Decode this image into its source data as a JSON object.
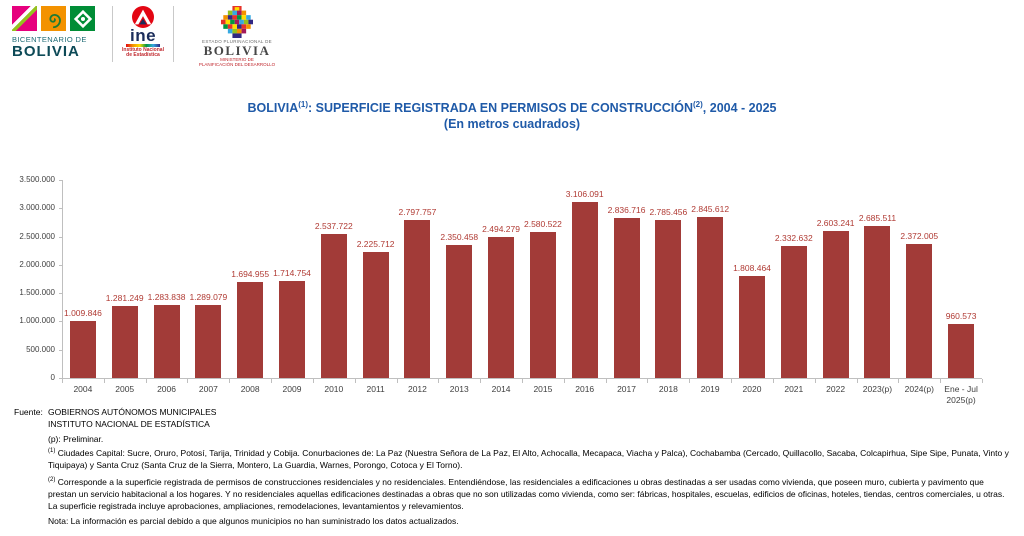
{
  "header": {
    "bicentenario": {
      "line1": "BICENTENARIO DE",
      "line2": "BOLIVIA"
    },
    "ine": {
      "name": "ine",
      "subtitle_line1": "Instituto Nacional",
      "subtitle_line2": "de Estadística"
    },
    "ministerio": {
      "small_top": "ESTADO PLURINACIONAL DE",
      "name": "BOLIVIA",
      "small_bottom_line1": "MINISTERIO DE",
      "small_bottom_line2": "PLANIFICACIÓN DEL DESARROLLO"
    }
  },
  "title": {
    "prefix": "BOLIVIA",
    "sup1": "(1)",
    "mid": ": SUPERFICIE REGISTRADA EN PERMISOS DE CONSTRUCCIÓN",
    "sup2": "(2)",
    "suffix": ", 2004 - 2025",
    "line2": "(En metros cuadrados)"
  },
  "chart_data": {
    "type": "bar",
    "categories": [
      "2004",
      "2005",
      "2006",
      "2007",
      "2008",
      "2009",
      "2010",
      "2011",
      "2012",
      "2013",
      "2014",
      "2015",
      "2016",
      "2017",
      "2018",
      "2019",
      "2020",
      "2021",
      "2022",
      "2023(p)",
      "2024(p)",
      "Ene - Jul\n2025(p)"
    ],
    "values": [
      1009846,
      1281249,
      1283838,
      1289079,
      1694955,
      1714754,
      2537722,
      2225712,
      2797757,
      2350458,
      2494279,
      2580522,
      3106091,
      2836716,
      2785456,
      2845612,
      1808464,
      2332632,
      2603241,
      2685511,
      2372005,
      960573
    ],
    "labels": [
      "1.009.846",
      "1.281.249",
      "1.283.838",
      "1.289.079",
      "1.694.955",
      "1.714.754",
      "2.537.722",
      "2.225.712",
      "2.797.757",
      "2.350.458",
      "2.494.279",
      "2.580.522",
      "3.106.091",
      "2.836.716",
      "2.785.456",
      "2.845.612",
      "1.808.464",
      "2.332.632",
      "2.603.241",
      "2.685.511",
      "2.372.005",
      "960.573"
    ],
    "y_ticks": [
      "0",
      "500.000",
      "1.000.000",
      "1.500.000",
      "2.000.000",
      "2.500.000",
      "3.000.000",
      "3.500.000"
    ],
    "ylim": [
      0,
      3500000
    ],
    "ytick_step": 500000,
    "grid": false,
    "legend": "none",
    "bar_color": "#a23b38",
    "label_color": "#b03a33",
    "axis_color": "#bfbfbf",
    "title": "BOLIVIA(1): SUPERFICIE REGISTRADA EN PERMISOS DE CONSTRUCCIÓN(2), 2004 - 2025",
    "subtitle": "(En metros cuadrados)",
    "xlabel": "",
    "ylabel": ""
  },
  "footer": {
    "fuente_label": "Fuente:",
    "fuente_line1": "GOBIERNOS AUTÓNOMOS MUNICIPALES",
    "fuente_line2": "INSTITUTO NACIONAL DE ESTADÍSTICA",
    "preliminar": "(p): Preliminar.",
    "note1_sup": "(1)",
    "note1_text": " Ciudades Capital: Sucre, Oruro, Potosí, Tarija, Trinidad y Cobija. Conurbaciones de: La Paz (Nuestra Señora de La Paz, El Alto, Achocalla, Mecapaca, Viacha y Palca), Cochabamba (Cercado, Quillacollo, Sacaba, Colcapirhua, Sipe Sipe, Punata, Vinto y Tiquipaya) y Santa Cruz (Santa Cruz de la Sierra, Montero, La Guardia, Warnes, Porongo, Cotoca y El Torno).",
    "note2_sup": "(2)",
    "note2_text": " Corresponde a la superficie registrada de permisos de construcciones residenciales y no residenciales. Entendiéndose, las residenciales a edificaciones u obras destinadas a ser usadas como vivienda, que poseen muro, cubierta y pavimento que prestan un servicio habitacional a los hogares. Y no residenciales aquellas edificaciones destinadas a obras que no son utilizadas como vivienda, como ser: fábricas, hospitales, escuelas, edificios de oficinas, hoteles, tiendas, centros comerciales, u otras. La superficie registrada incluye aprobaciones, ampliaciones, remodelaciones, levantamientos y relevamientos.",
    "nota": "Nota: La información es parcial debido a que algunos municipios no han suministrado los datos actualizados."
  }
}
